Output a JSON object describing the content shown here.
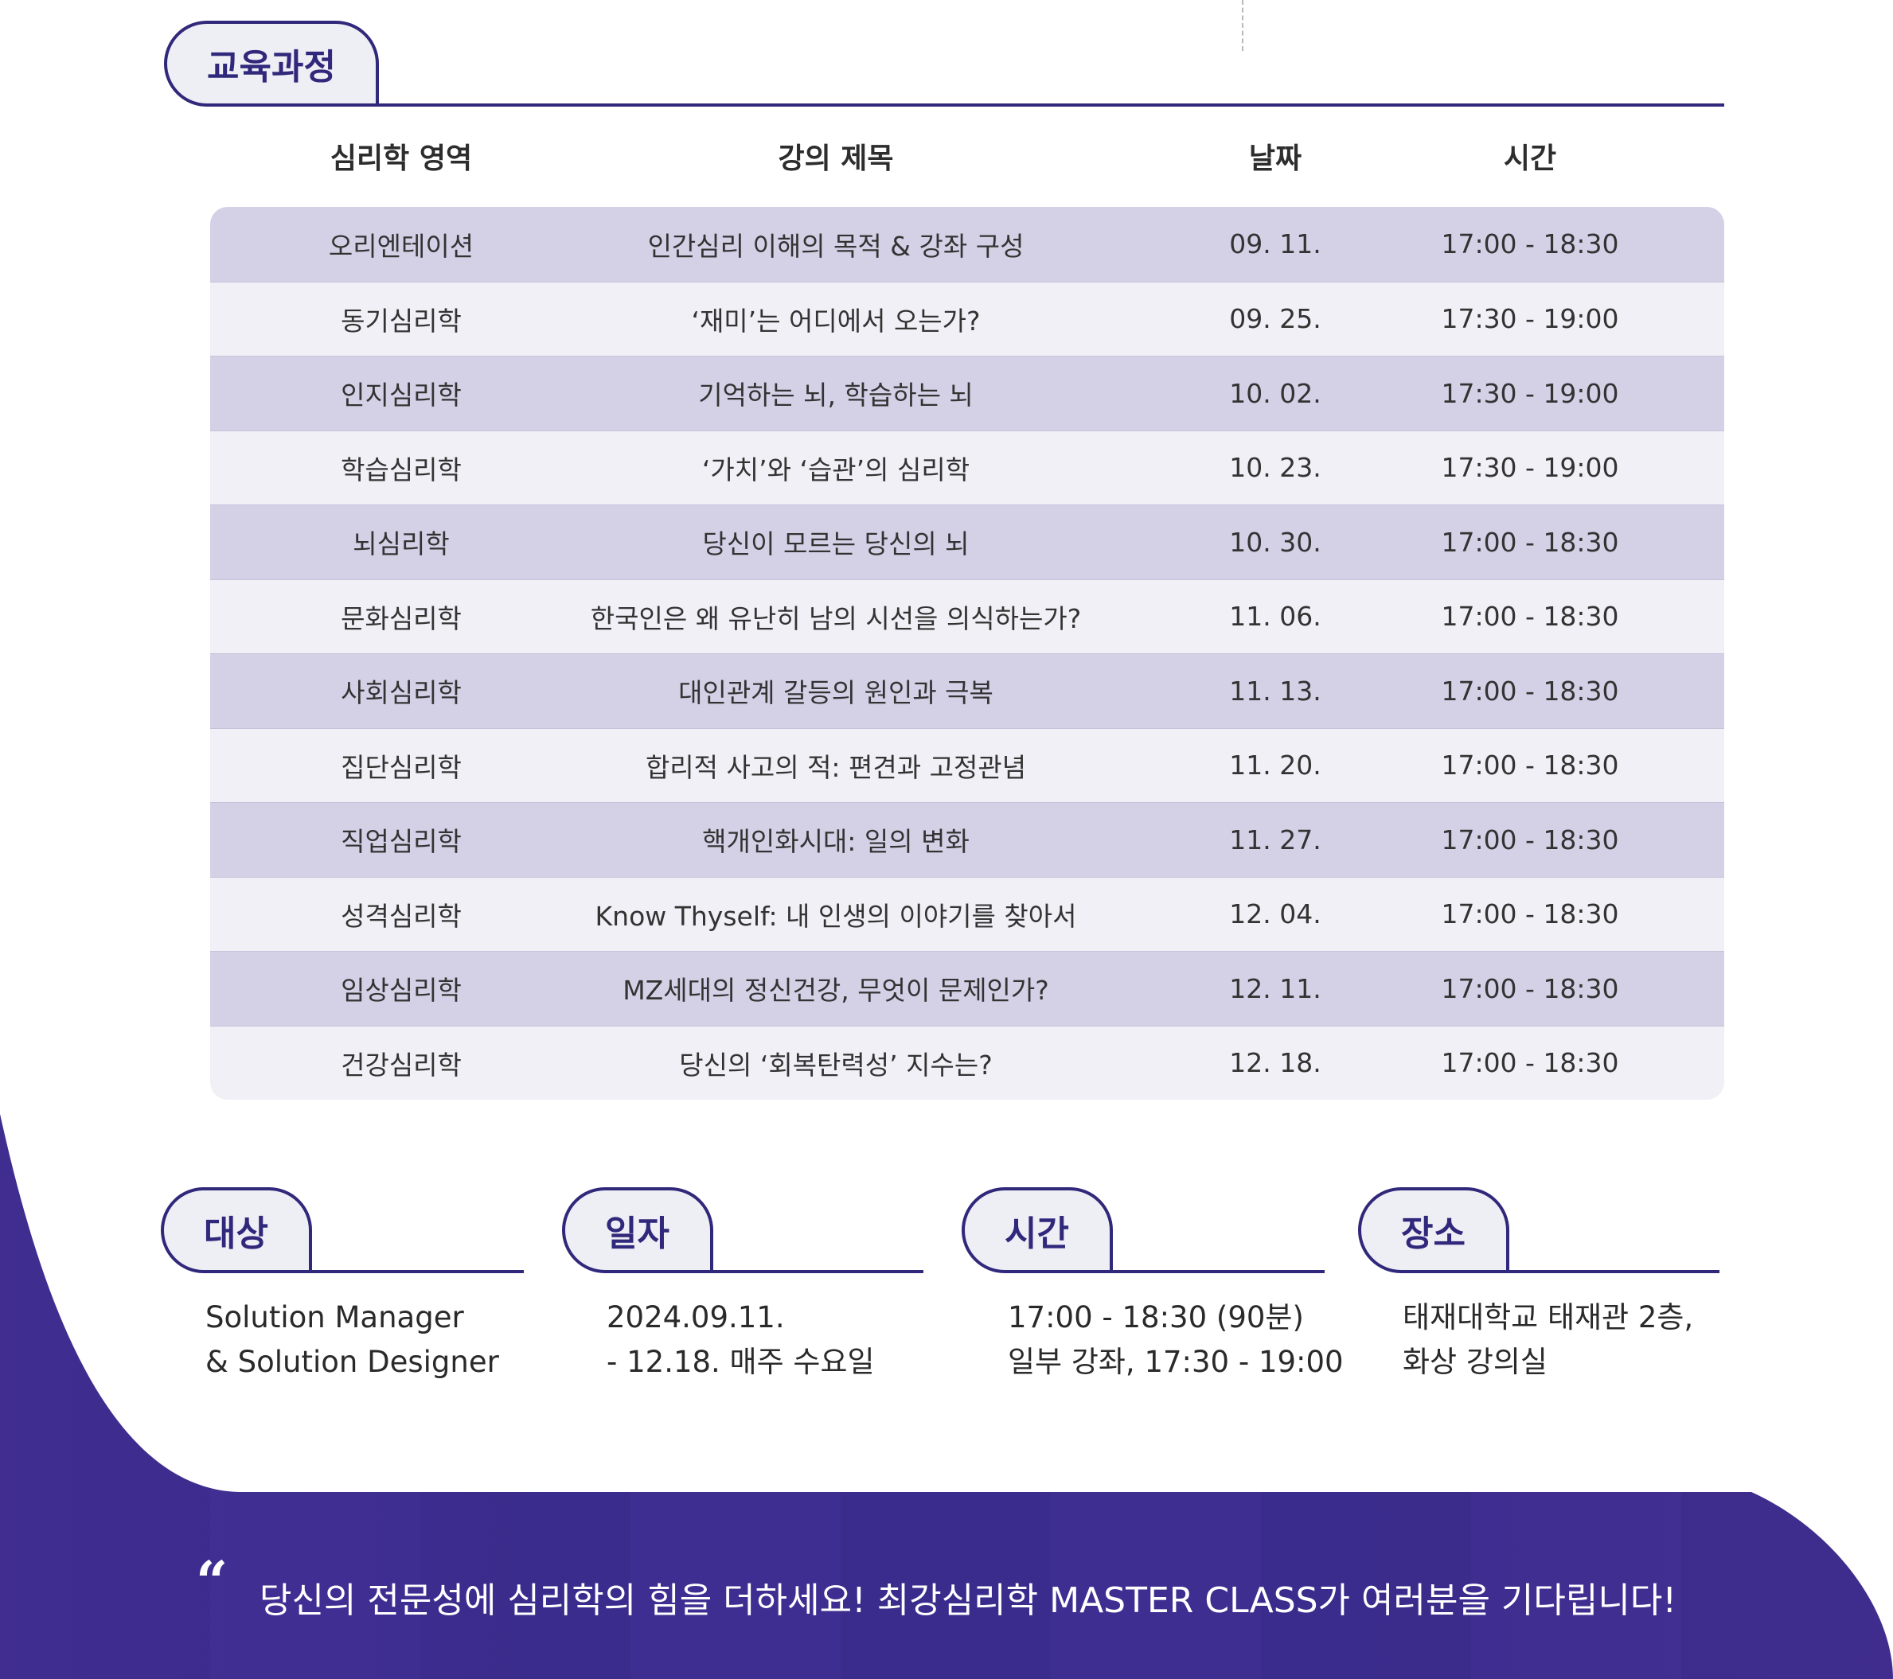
{
  "curriculum": {
    "title": "교육과정",
    "headers": [
      "심리학 영역",
      "강의 제목",
      "날짜",
      "시간"
    ],
    "rows": [
      [
        "오리엔테이션",
        "인간심리 이해의 목적 & 강좌 구성",
        "09. 11.",
        "17:00 - 18:30"
      ],
      [
        "동기심리학",
        "‘재미’는 어디에서 오는가?",
        "09. 25.",
        "17:30 - 19:00"
      ],
      [
        "인지심리학",
        "기억하는 뇌, 학습하는 뇌",
        "10. 02.",
        "17:30 - 19:00"
      ],
      [
        "학습심리학",
        "‘가치’와 ‘습관’의 심리학",
        "10. 23.",
        "17:30 - 19:00"
      ],
      [
        "뇌심리학",
        "당신이 모르는 당신의 뇌",
        "10. 30.",
        "17:00 - 18:30"
      ],
      [
        "문화심리학",
        "한국인은 왜 유난히 남의 시선을 의식하는가?",
        "11. 06.",
        "17:00 - 18:30"
      ],
      [
        "사회심리학",
        "대인관계 갈등의 원인과 극복",
        "11. 13.",
        "17:00 - 18:30"
      ],
      [
        "집단심리학",
        "합리적 사고의 적: 편견과 고정관념",
        "11. 20.",
        "17:00 - 18:30"
      ],
      [
        "직업심리학",
        "핵개인화시대: 일의 변화",
        "11. 27.",
        "17:00 - 18:30"
      ],
      [
        "성격심리학",
        "Know Thyself: 내 인생의 이야기를 찾아서",
        "12. 04.",
        "17:00 - 18:30"
      ],
      [
        "임상심리학",
        "MZ세대의 정신건강, 무엇이 문제인가?",
        "12. 11.",
        "17:00 - 18:30"
      ],
      [
        "건강심리학",
        "당신의 ‘회복탄력성’ 지수는?",
        "12. 18.",
        "17:00 - 18:30"
      ]
    ]
  },
  "info": [
    {
      "label": "대상",
      "lines": [
        "Solution Manager",
        "& Solution Designer"
      ]
    },
    {
      "label": "일자",
      "lines": [
        "2024.09.11.",
        "- 12.18. 매주 수요일"
      ]
    },
    {
      "label": "시간",
      "lines": [
        "17:00 - 18:30 (90분)",
        "일부 강좌, 17:30 - 19:00"
      ]
    },
    {
      "label": "장소",
      "lines": [
        "태재대학교 태재관 2층,",
        "화상 강의실"
      ]
    }
  ],
  "banner": {
    "quote_mark": "“",
    "text": "당신의 전문성에 심리학의 힘을 더하세요! 최강심리학 MASTER CLASS가 여러분을 기다립니다!"
  },
  "colors": {
    "accent": "#30287a",
    "row_dark": "#d4d1e7",
    "row_light": "#f1f0f6",
    "banner_base": "#3a2c8c"
  }
}
